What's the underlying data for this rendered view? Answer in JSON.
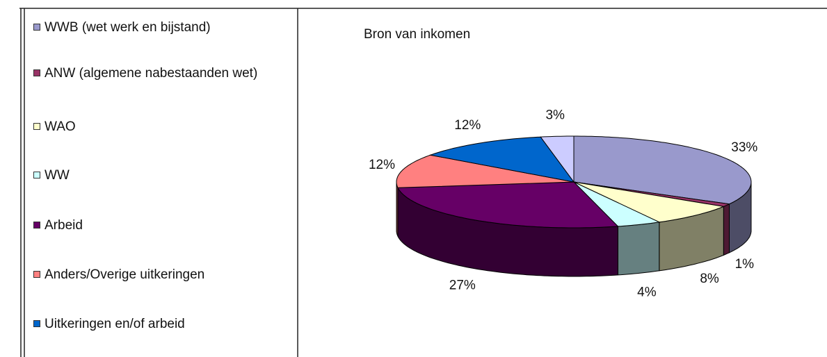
{
  "chart_data": {
    "type": "pie3d",
    "title": "Bron van inkomen",
    "categories": [
      "WWB (wet werk en bijstand)",
      "ANW (algemene nabestaanden wet)",
      "WAO",
      "WW",
      "Arbeid",
      "Anders/Overige uitkeringen",
      "Uitkeringen en/of arbeid",
      null
    ],
    "values": [
      33,
      1,
      8,
      4,
      27,
      12,
      12,
      3
    ],
    "value_labels": [
      "33%",
      "1%",
      "8%",
      "4%",
      "27%",
      "12%",
      "12%",
      "3%"
    ],
    "colors": [
      "#9999cc",
      "#993366",
      "#ffffcc",
      "#ccffff",
      "#660066",
      "#ff8080",
      "#0066cc",
      "#ccccff"
    ],
    "legend": "left"
  }
}
